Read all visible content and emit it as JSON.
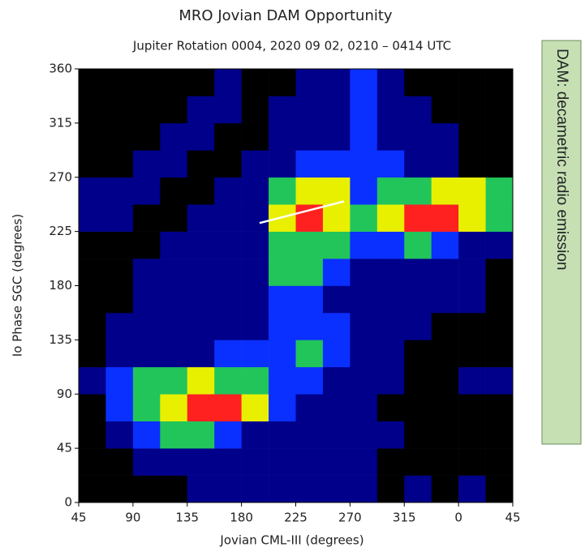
{
  "chart_data": {
    "type": "heatmap",
    "title": "MRO Jovian DAM Opportunity",
    "subtitle": "Jupiter Rotation 0004, 2020 09 02, 0210 – 0414 UTC",
    "x_label": "Jovian CML-III (degrees)",
    "y_label": "Io Phase SGC (degrees)",
    "side_note": "DAM: decametric radio emission",
    "xlim": [
      45,
      405
    ],
    "ylim": [
      0,
      360
    ],
    "xticks": [
      45,
      90,
      135,
      180,
      225,
      270,
      315,
      {
        "value": 360,
        "label": "0"
      },
      {
        "value": 405,
        "label": "45"
      }
    ],
    "yticks": [
      0,
      45,
      90,
      135,
      180,
      225,
      270,
      315,
      360
    ],
    "xbins": [
      45,
      67.5,
      90,
      112.5,
      135,
      157.5,
      180,
      202.5,
      225,
      247.5,
      270,
      292.5,
      315,
      337.5,
      360,
      382.5,
      405
    ],
    "ybins": [
      0,
      22.5,
      45,
      67.5,
      90,
      112.5,
      135,
      157.5,
      180,
      202.5,
      225,
      247.5,
      270,
      292.5,
      315,
      337.5,
      360
    ],
    "colors": [
      "#000000",
      "#00008b",
      "#0a30ff",
      "#22c55a",
      "#e8f000",
      "#ff2020"
    ],
    "z": [
      [
        0,
        0,
        0,
        0,
        1,
        1,
        1,
        1,
        1,
        1,
        1,
        0,
        1,
        0,
        1,
        0
      ],
      [
        0,
        0,
        1,
        1,
        1,
        1,
        1,
        1,
        1,
        1,
        1,
        0,
        0,
        0,
        0,
        0
      ],
      [
        0,
        1,
        2,
        3,
        3,
        2,
        1,
        1,
        1,
        1,
        1,
        1,
        0,
        0,
        0,
        0
      ],
      [
        0,
        2,
        3,
        4,
        5,
        5,
        4,
        2,
        1,
        1,
        1,
        0,
        0,
        0,
        0,
        0
      ],
      [
        1,
        2,
        3,
        3,
        4,
        3,
        3,
        2,
        2,
        1,
        1,
        1,
        0,
        0,
        1,
        1
      ],
      [
        0,
        1,
        1,
        1,
        1,
        2,
        2,
        2,
        3,
        2,
        1,
        1,
        0,
        0,
        0,
        0
      ],
      [
        0,
        1,
        1,
        1,
        1,
        1,
        1,
        2,
        2,
        2,
        1,
        1,
        1,
        0,
        0,
        0
      ],
      [
        0,
        0,
        1,
        1,
        1,
        1,
        1,
        2,
        2,
        1,
        1,
        1,
        1,
        1,
        1,
        0
      ],
      [
        0,
        0,
        1,
        1,
        1,
        1,
        1,
        3,
        3,
        2,
        1,
        1,
        1,
        1,
        1,
        0
      ],
      [
        0,
        0,
        0,
        1,
        1,
        1,
        1,
        3,
        3,
        3,
        2,
        2,
        3,
        2,
        1,
        1
      ],
      [
        1,
        1,
        0,
        0,
        1,
        1,
        1,
        4,
        5,
        4,
        3,
        4,
        5,
        5,
        4,
        3
      ],
      [
        1,
        1,
        1,
        0,
        0,
        1,
        1,
        3,
        4,
        4,
        2,
        3,
        3,
        4,
        4,
        3
      ],
      [
        0,
        0,
        1,
        1,
        0,
        0,
        1,
        1,
        2,
        2,
        2,
        2,
        1,
        1,
        0,
        0
      ],
      [
        0,
        0,
        0,
        1,
        1,
        0,
        0,
        1,
        1,
        1,
        2,
        1,
        1,
        1,
        0,
        0
      ],
      [
        0,
        0,
        0,
        0,
        1,
        1,
        0,
        1,
        1,
        1,
        2,
        1,
        1,
        0,
        0,
        0
      ],
      [
        0,
        0,
        0,
        0,
        0,
        1,
        0,
        0,
        1,
        1,
        2,
        1,
        0,
        0,
        0,
        0
      ]
    ],
    "annotation_line": {
      "x": [
        195,
        265
      ],
      "y": [
        232,
        250
      ],
      "color": "#ffffff"
    }
  }
}
